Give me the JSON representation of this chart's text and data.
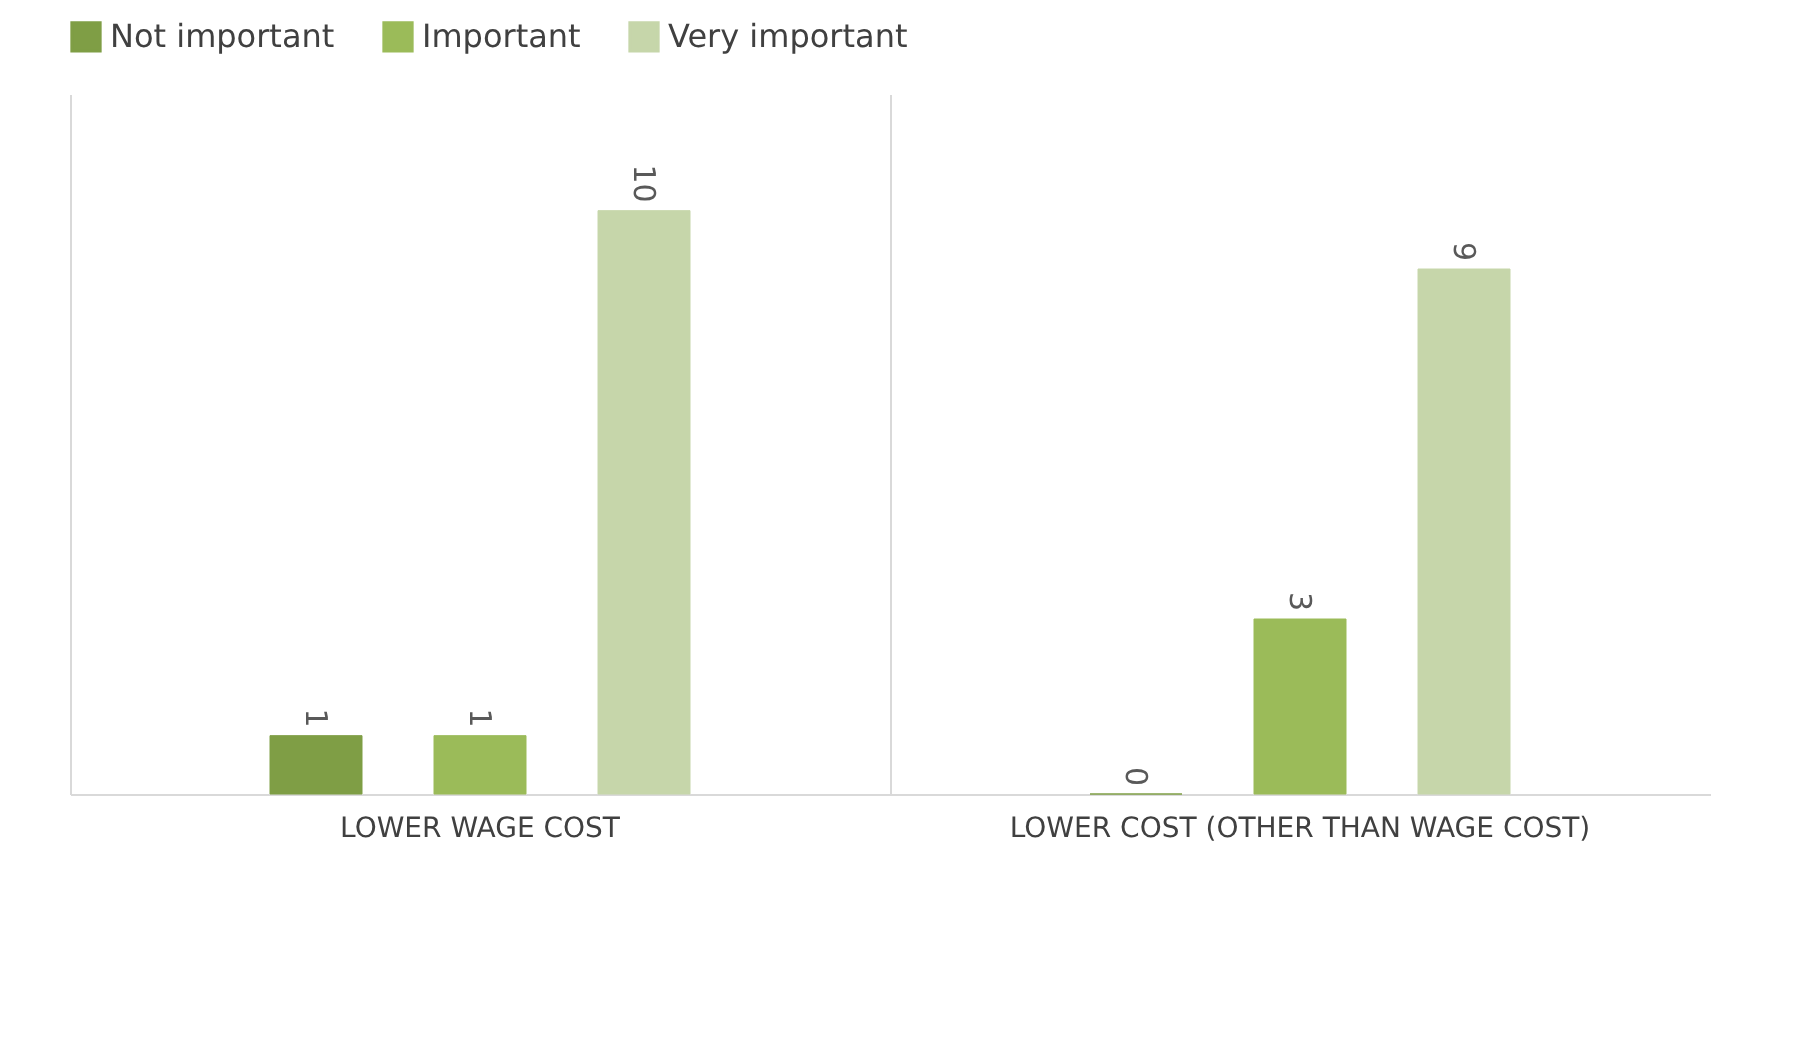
{
  "chart_data": {
    "type": "bar",
    "categories": [
      "LOWER WAGE COST",
      "LOWER COST (OTHER THAN WAGE COST)"
    ],
    "series": [
      {
        "name": "Not important",
        "color": "#7f9e45",
        "values": [
          1,
          0
        ]
      },
      {
        "name": "Important",
        "color": "#9bbb59",
        "values": [
          1,
          3
        ]
      },
      {
        "name": "Very important",
        "color": "#c6d6aa",
        "values": [
          10,
          9
        ]
      }
    ],
    "tick_labels": "x",
    "data_labels": true,
    "grid": "x",
    "legend": "top"
  }
}
